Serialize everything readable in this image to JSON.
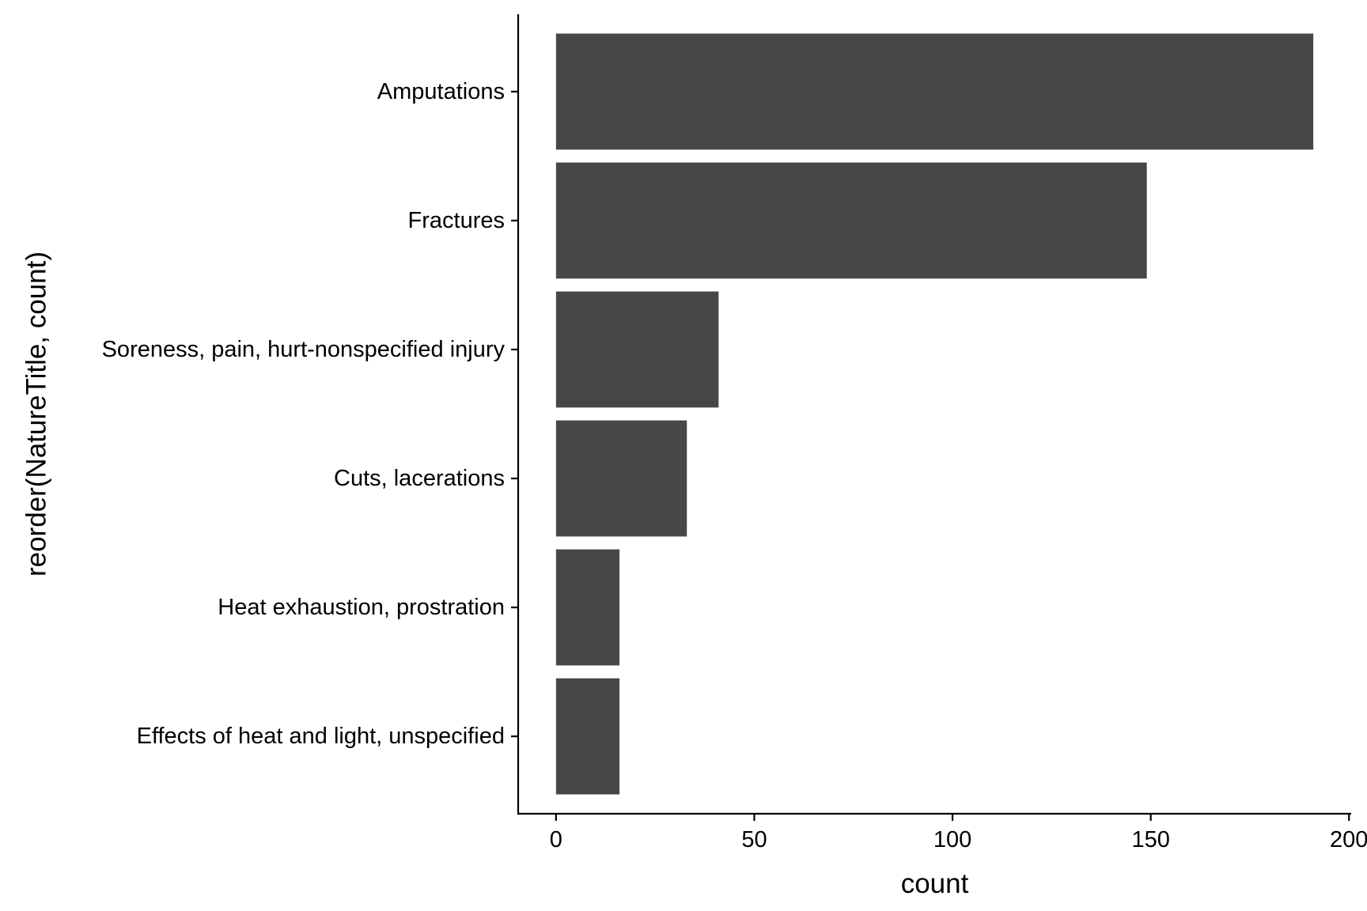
{
  "chart_data": {
    "type": "bar",
    "orientation": "horizontal",
    "categories": [
      "Amputations",
      "Fractures",
      "Soreness, pain, hurt-nonspecified injury",
      "Cuts, lacerations",
      "Heat exhaustion, prostration",
      "Effects of heat and light, unspecified"
    ],
    "values": [
      191,
      149,
      41,
      33,
      16,
      16
    ],
    "xlabel": "count",
    "ylabel": "reorder(NatureTitle, count)",
    "xticks": [
      0,
      50,
      100,
      150,
      200
    ],
    "xtick_labels": [
      "0",
      "50",
      "100",
      "150",
      "200"
    ],
    "xlim": [
      -9.55,
      200.55
    ],
    "grid": false,
    "bar_color": "#474747"
  }
}
